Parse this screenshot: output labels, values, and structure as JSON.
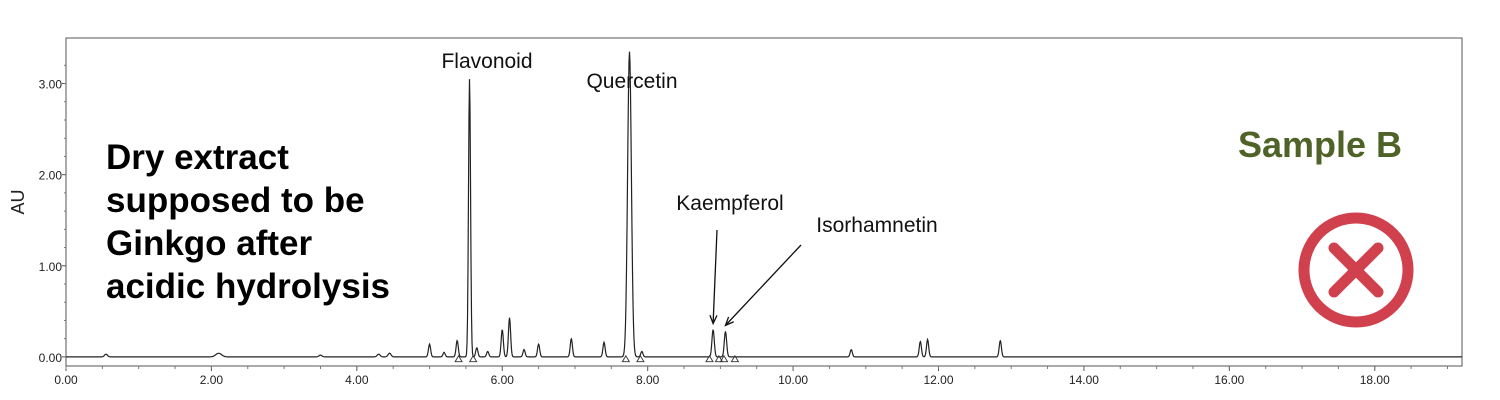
{
  "chart_data": {
    "type": "line",
    "title": "",
    "xlabel": "",
    "ylabel": "AU",
    "xlim": [
      0,
      19.2
    ],
    "ylim": [
      -0.1,
      3.5
    ],
    "x_ticks": [
      0,
      2,
      4,
      6,
      8,
      10,
      12,
      14,
      16,
      18
    ],
    "x_tick_labels": [
      "0.00",
      "2.00",
      "4.00",
      "6.00",
      "8.00",
      "10.00",
      "12.00",
      "14.00",
      "16.00",
      "18.00"
    ],
    "y_ticks": [
      0,
      1,
      2,
      3
    ],
    "y_tick_labels": [
      "0.00",
      "1.00",
      "2.00",
      "3.00"
    ],
    "grid": false,
    "series": [
      {
        "peaks": [
          {
            "x": 0.55,
            "y": 0.03,
            "w": 0.02
          },
          {
            "x": 2.1,
            "y": 0.04,
            "w": 0.04
          },
          {
            "x": 3.5,
            "y": 0.02,
            "w": 0.02
          },
          {
            "x": 4.3,
            "y": 0.03,
            "w": 0.02
          },
          {
            "x": 4.45,
            "y": 0.04,
            "w": 0.02
          },
          {
            "x": 5.0,
            "y": 0.14,
            "w": 0.015
          },
          {
            "x": 5.2,
            "y": 0.05,
            "w": 0.015
          },
          {
            "x": 5.38,
            "y": 0.18,
            "w": 0.015
          },
          {
            "x": 5.55,
            "y": 3.05,
            "w": 0.014
          },
          {
            "x": 5.65,
            "y": 0.1,
            "w": 0.015
          },
          {
            "x": 5.8,
            "y": 0.06,
            "w": 0.015
          },
          {
            "x": 6.0,
            "y": 0.3,
            "w": 0.015
          },
          {
            "x": 6.1,
            "y": 0.43,
            "w": 0.015
          },
          {
            "x": 6.3,
            "y": 0.08,
            "w": 0.015
          },
          {
            "x": 6.5,
            "y": 0.14,
            "w": 0.015
          },
          {
            "x": 6.95,
            "y": 0.2,
            "w": 0.015
          },
          {
            "x": 7.4,
            "y": 0.16,
            "w": 0.015
          },
          {
            "x": 7.75,
            "y": 3.35,
            "w": 0.026
          },
          {
            "x": 7.92,
            "y": 0.06,
            "w": 0.015
          },
          {
            "x": 8.9,
            "y": 0.3,
            "w": 0.016
          },
          {
            "x": 9.07,
            "y": 0.28,
            "w": 0.016
          },
          {
            "x": 10.8,
            "y": 0.08,
            "w": 0.015
          },
          {
            "x": 11.75,
            "y": 0.17,
            "w": 0.015
          },
          {
            "x": 11.85,
            "y": 0.19,
            "w": 0.015
          },
          {
            "x": 12.85,
            "y": 0.18,
            "w": 0.015
          }
        ]
      }
    ],
    "integration_markers": [
      5.4,
      5.6,
      7.7,
      7.9,
      8.85,
      8.98,
      9.05,
      9.2
    ],
    "annotations": [
      {
        "text": "Flavonoid",
        "x": 5.55,
        "y": 3.05
      },
      {
        "text": "Quercetin",
        "x": 7.75,
        "y": 3.35
      },
      {
        "text": "Kaempferol",
        "x": 8.9,
        "y": 0.3
      },
      {
        "text": "Isorhamnetin",
        "x": 9.07,
        "y": 0.28
      }
    ]
  },
  "sample_label": "Sample B",
  "description_lines": [
    "Dry extract",
    "supposed to be",
    "Ginkgo after",
    "acidic hydrolysis"
  ],
  "colors": {
    "trace": "#222222",
    "sample_label": "#4f6228",
    "reject_mark": "#d0404d"
  },
  "icons": {
    "reject": "circle-x-icon"
  }
}
